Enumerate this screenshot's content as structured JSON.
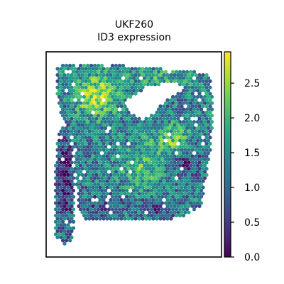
{
  "chart_data": {
    "type": "scatter",
    "subtype": "spatial-hexbin",
    "title": [
      "UKF260",
      "ID3 expression"
    ],
    "xlabel": "",
    "ylabel": "",
    "grid": false,
    "axes_ticks": false,
    "colorbar": {
      "colormap": "viridis",
      "range": [
        0.0,
        2.95
      ],
      "ticks": [
        0.0,
        0.5,
        1.0,
        1.5,
        2.0,
        2.5
      ],
      "tick_labels": [
        "0.0",
        "0.5",
        "1.0",
        "1.5",
        "2.0",
        "2.5"
      ],
      "location": "right"
    },
    "value_range": [
      0.0,
      2.95
    ],
    "colors": {
      "viridis": [
        "#440154",
        "#482878",
        "#3e4989",
        "#31688e",
        "#26828e",
        "#1f9e89",
        "#35b779",
        "#6ece58",
        "#b5de2b",
        "#fde725"
      ]
    }
  }
}
